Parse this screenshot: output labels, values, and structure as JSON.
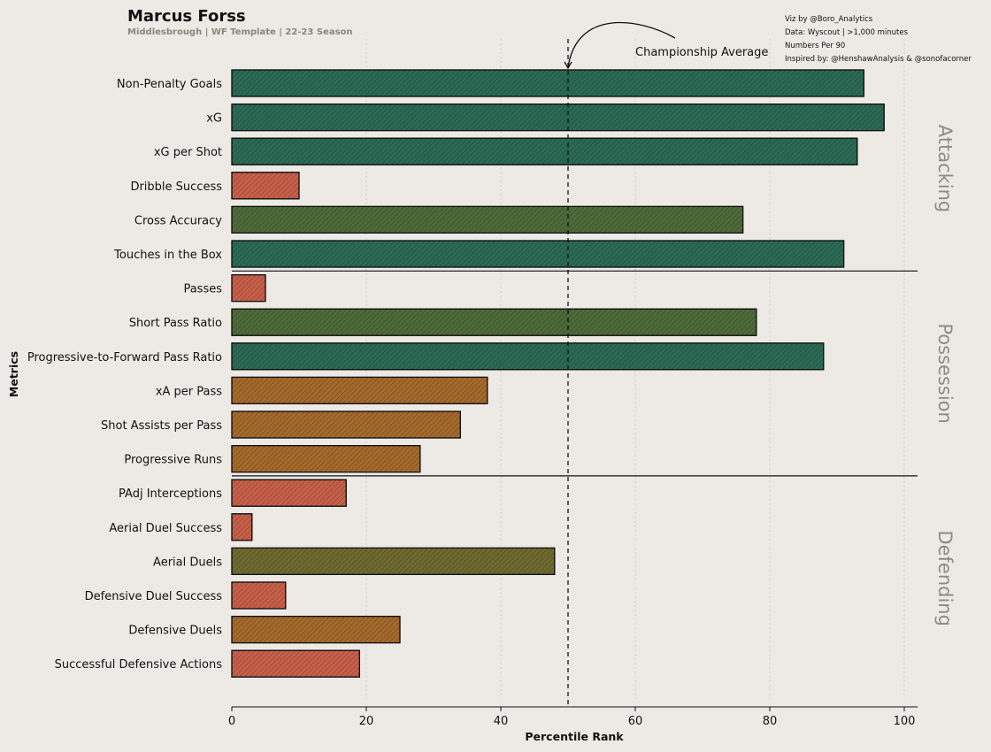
{
  "header": {
    "title": "Marcus Forss",
    "subtitle": "Middlesbrough | WF Template | 22-23 Season"
  },
  "credits": [
    "Viz by @Boro_Analytics",
    "Data: Wyscout | >1,000 minutes",
    "Numbers Per 90",
    "Inspired by: @HenshawAnalysis & @sonofacorner"
  ],
  "chart_data": {
    "type": "bar",
    "orientation": "horizontal",
    "xlabel": "Percentile Rank",
    "ylabel": "Metrics",
    "xlim": [
      0,
      100
    ],
    "xticks": [
      0,
      20,
      40,
      60,
      80,
      100
    ],
    "grid": true,
    "reference_line": {
      "value": 50,
      "label": "Championship Average"
    },
    "colors": {
      "dark_green": "#2b6b55",
      "olive_green": "#4e6b3a",
      "olive": "#6f6b30",
      "orange": "#a66a2c",
      "red": "#c8604a"
    },
    "categories": [
      "Non-Penalty Goals",
      "xG",
      "xG per Shot",
      "Dribble Success",
      "Cross Accuracy",
      "Touches in the Box",
      "Passes",
      "Short Pass Ratio",
      "Progressive-to-Forward Pass Ratio",
      "xA per Pass",
      "Shot Assists per Pass",
      "Progressive Runs",
      "PAdj Interceptions",
      "Aerial Duel Success",
      "Aerial Duels",
      "Defensive Duel Success",
      "Defensive Duels",
      "Successful Defensive Actions"
    ],
    "values": [
      94,
      97,
      93,
      10,
      76,
      91,
      5,
      78,
      88,
      38,
      34,
      28,
      17,
      3,
      48,
      8,
      25,
      19
    ],
    "bar_colors": [
      "#2b6b55",
      "#2b6b55",
      "#2b6b55",
      "#c8604a",
      "#4e6b3a",
      "#2b6b55",
      "#c8604a",
      "#4e6b3a",
      "#2b6b55",
      "#a66a2c",
      "#a66a2c",
      "#a66a2c",
      "#c8604a",
      "#c8604a",
      "#6f6b30",
      "#c8604a",
      "#a66a2c",
      "#c8604a"
    ],
    "sections": [
      {
        "name": "Attacking",
        "start": 0,
        "end": 5
      },
      {
        "name": "Possession",
        "start": 6,
        "end": 11
      },
      {
        "name": "Defending",
        "start": 12,
        "end": 17
      }
    ]
  }
}
